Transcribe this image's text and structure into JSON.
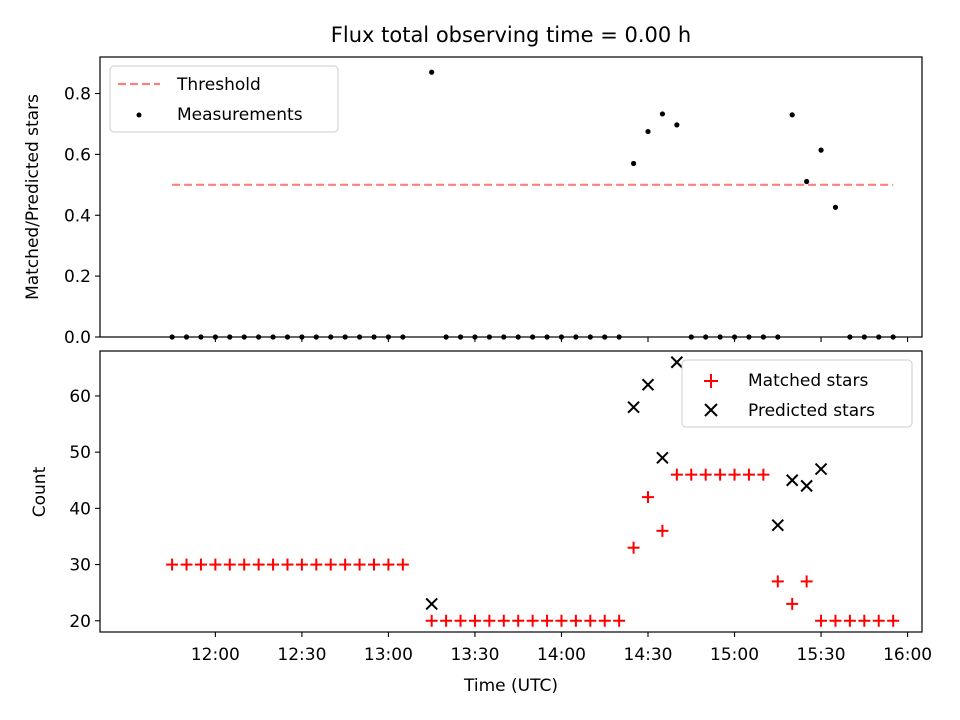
{
  "chart_data": {
    "title": "Flux total observing time = 0.00 h",
    "xlabel": "Time (UTC)",
    "x_ticks": [
      "12:00",
      "12:30",
      "13:00",
      "13:30",
      "14:00",
      "14:30",
      "15:00",
      "15:30",
      "16:00"
    ],
    "x_tick_minutes": [
      720,
      750,
      780,
      810,
      840,
      870,
      900,
      930,
      960
    ],
    "xlim_minutes": [
      680,
      965
    ],
    "panels": [
      {
        "type": "scatter",
        "ylabel": "Matched/Predicted stars",
        "ylim": [
          0,
          0.92
        ],
        "y_ticks": [
          0.0,
          0.2,
          0.4,
          0.6,
          0.8
        ],
        "y_tick_labels": [
          "0.0",
          "0.2",
          "0.4",
          "0.6",
          "0.8"
        ],
        "legend": [
          "Threshold",
          "Measurements"
        ],
        "threshold": {
          "name": "Threshold",
          "value": 0.5,
          "x_start": 705,
          "x_end": 955,
          "color": "#ff7f7f"
        },
        "measurements": {
          "name": "Measurements",
          "color": "#000000",
          "x": [
            705,
            710,
            715,
            720,
            725,
            730,
            735,
            740,
            745,
            750,
            755,
            760,
            765,
            770,
            775,
            780,
            785,
            795,
            800,
            805,
            810,
            815,
            820,
            825,
            830,
            835,
            840,
            845,
            850,
            855,
            860,
            865,
            870,
            875,
            880,
            885,
            890,
            895,
            900,
            905,
            910,
            915,
            920,
            925,
            930,
            935,
            940,
            945,
            950,
            955
          ],
          "y": [
            0,
            0,
            0,
            0,
            0,
            0,
            0,
            0,
            0,
            0,
            0,
            0,
            0,
            0,
            0,
            0,
            0,
            0.87,
            0,
            0,
            0,
            0,
            0,
            0,
            0,
            0,
            0,
            0,
            0,
            0,
            0,
            0.57,
            0.675,
            0.733,
            0.697,
            0,
            0,
            0,
            0,
            0,
            0,
            0,
            0.73,
            0.511,
            0.614,
            0.426,
            0,
            0,
            0,
            0
          ]
        }
      },
      {
        "type": "scatter",
        "ylabel": "Count",
        "ylim": [
          18,
          68
        ],
        "y_ticks": [
          20,
          30,
          40,
          50,
          60
        ],
        "y_tick_labels": [
          "20",
          "30",
          "40",
          "50",
          "60"
        ],
        "legend": [
          "Matched stars",
          "Predicted stars"
        ],
        "series": [
          {
            "name": "Matched stars",
            "marker": "+",
            "color": "#ff0000",
            "x": [
              705,
              710,
              715,
              720,
              725,
              730,
              735,
              740,
              745,
              750,
              755,
              760,
              765,
              770,
              775,
              780,
              785,
              795,
              800,
              805,
              810,
              815,
              820,
              825,
              830,
              835,
              840,
              845,
              850,
              855,
              860,
              865,
              870,
              875,
              880,
              885,
              890,
              895,
              900,
              905,
              910,
              915,
              920,
              925,
              930,
              935,
              940,
              945,
              950,
              955
            ],
            "y": [
              30,
              30,
              30,
              30,
              30,
              30,
              30,
              30,
              30,
              30,
              30,
              30,
              30,
              30,
              30,
              30,
              30,
              20,
              20,
              20,
              20,
              20,
              20,
              20,
              20,
              20,
              20,
              20,
              20,
              20,
              20,
              33,
              42,
              36,
              46,
              46,
              46,
              46,
              46,
              46,
              46,
              27,
              23,
              27,
              20,
              20,
              20,
              20,
              20,
              20
            ]
          },
          {
            "name": "Predicted stars",
            "marker": "x",
            "color": "#000000",
            "x": [
              795,
              865,
              870,
              875,
              880,
              915,
              920,
              925,
              930
            ],
            "y": [
              23,
              58,
              62,
              49,
              66,
              37,
              45,
              44,
              47
            ]
          }
        ]
      }
    ]
  }
}
